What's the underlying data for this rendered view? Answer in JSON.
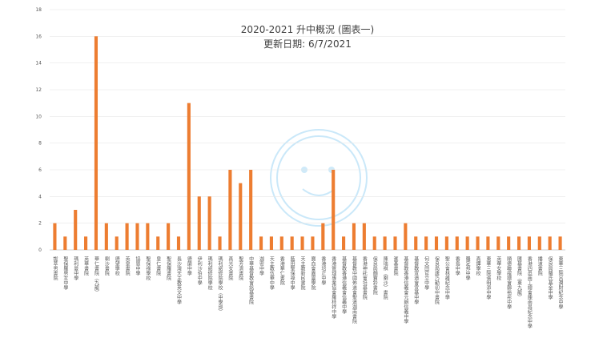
{
  "chart_data": {
    "type": "bar",
    "title": "2020-2021 升中概況 (圖表一)",
    "subtitle": "更新日期: 6/7/2021",
    "ylim": [
      0,
      18
    ],
    "yticks": [
      0,
      2,
      4,
      6,
      8,
      10,
      12,
      14,
      16,
      18
    ],
    "grid": true,
    "legend": "none",
    "bar_color": "#ed7d31",
    "categories": [
      "拔萃男書院",
      "聖保羅男女中學",
      "瑪利曼中學",
      "英華書院",
      "華仁書院（九龍）",
      "喇沙書院",
      "德望學校",
      "英皇書院",
      "協恩中學",
      "聖保祿學校",
      "皇仁書院",
      "聖保羅書院",
      "長沙灣天主教英文中學",
      "德蘭中學",
      "伊利沙伯中學",
      "瑪利諾修院學校",
      "瑪利諾修院學校（中學部）",
      "真光女書院",
      "聖芳濟書院",
      "中華基督教會銘基書院",
      "迦密中學",
      "天主教伍華中學",
      "香港華仁書院",
      "藍田聖保祿中學",
      "天主教新民書院",
      "寶血會嘉靈學院",
      "香港培正中學",
      "香港管理專業協會羅桂祥中學",
      "基督教香港信義會信義中學",
      "基督教中國佈道會聖道迦南書院",
      "香港神託會培基書院",
      "保良局顏寶鈴書院",
      "陳瑞祺（喇沙）書院",
      "滙基書院",
      "基督教香港信義會元朗信義中學",
      "基督教宣道會宣基中學",
      "何文田官立中學",
      "保良局唐乃勤初中書院",
      "聖公會林護紀念中學",
      "香島中學",
      "羅定邦中學",
      "真鐸學校",
      "東華三院張明添中學",
      "英華女學校",
      "順德聯誼總會鄭裕彤中學",
      "匯基書院（東九龍）",
      "香港四邑商工總會陳南昌紀念中學",
      "播道書院",
      "保良局羅氏基金中學",
      "東華三院呂潤財紀念中學"
    ],
    "values": [
      2,
      1,
      3,
      1,
      16,
      2,
      1,
      2,
      2,
      2,
      1,
      2,
      1,
      11,
      4,
      4,
      1,
      6,
      5,
      6,
      1,
      1,
      1,
      1,
      1,
      1,
      2,
      6,
      1,
      2,
      2,
      1,
      1,
      1,
      2,
      1,
      1,
      1,
      1,
      1,
      1,
      1,
      1,
      1,
      1,
      1,
      1,
      1,
      1,
      1
    ]
  }
}
